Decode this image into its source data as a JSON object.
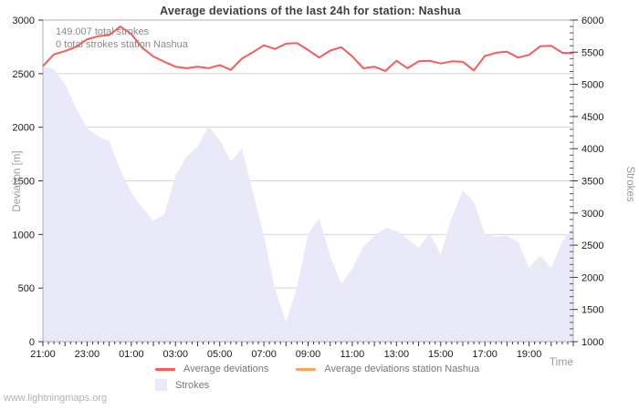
{
  "page": {
    "title": "Average deviations of the last 24h for station: Nashua",
    "watermark": "www.lightningmaps.org"
  },
  "annotations": {
    "total_strokes": "149.007 total strokes",
    "station_strokes": "0 total strokes station Nashua"
  },
  "axes": {
    "left_label": "Deviation [m]",
    "right_label": "Strokes",
    "x_label": "Time"
  },
  "legend": [
    {
      "label": "Average deviations",
      "type": "line",
      "color": "#f45d5d"
    },
    {
      "label": "Average deviations station Nashua",
      "type": "line",
      "color": "#f9a35f"
    },
    {
      "label": "Strokes",
      "type": "area",
      "color": "#e9e9fa"
    }
  ],
  "colors": {
    "deviation_line": "#f45d5d",
    "station_line": "#f9a35f",
    "strokes_fill": "#e9e9fa",
    "grid": "#d4d4d4",
    "frame": "#b0b0b0",
    "tick_text": "#1a1a1a",
    "muted_text": "#9a9a9a"
  },
  "chart_data": {
    "type": "line",
    "title": "Average deviations of the last 24h for station: Nashua",
    "x_start": "21:00",
    "x_step_minutes": 30,
    "x_total_hours": 24,
    "xtick_labels": [
      "21:00",
      "23:00",
      "01:00",
      "03:00",
      "05:00",
      "07:00",
      "09:00",
      "11:00",
      "13:00",
      "15:00",
      "17:00",
      "19:00"
    ],
    "xtick_label_every_hours": 2,
    "ylabel_left": "Deviation [m]",
    "ylabel_right": "Strokes",
    "ylim_left": [
      0,
      3000
    ],
    "ytick_step_left": 500,
    "ylim_right": [
      1000,
      6000
    ],
    "ytick_step_right": 500,
    "grid": "horizontal-only",
    "legend_position": "bottom-center",
    "series": [
      {
        "name": "Average deviations",
        "axis": "left",
        "draw": "line",
        "color": "#f45d5d",
        "values": [
          2570,
          2680,
          2710,
          2750,
          2820,
          2850,
          2860,
          2940,
          2870,
          2740,
          2660,
          2610,
          2565,
          2550,
          2565,
          2550,
          2580,
          2535,
          2640,
          2700,
          2765,
          2730,
          2780,
          2785,
          2720,
          2650,
          2715,
          2748,
          2660,
          2550,
          2565,
          2525,
          2620,
          2550,
          2615,
          2620,
          2595,
          2615,
          2610,
          2530,
          2665,
          2695,
          2705,
          2650,
          2675,
          2755,
          2760,
          2695,
          2690
        ]
      },
      {
        "name": "Average deviations station Nashua",
        "axis": "left",
        "draw": "line",
        "color": "#f9a35f",
        "values": []
      },
      {
        "name": "Strokes",
        "axis": "right",
        "draw": "area",
        "color": "#e9e9fa",
        "values": [
          5270,
          5240,
          5000,
          4630,
          4320,
          4190,
          4120,
          3670,
          3320,
          3080,
          2880,
          2980,
          3580,
          3880,
          4030,
          4350,
          4130,
          3800,
          4000,
          3330,
          2650,
          1820,
          1300,
          1850,
          2670,
          2920,
          2330,
          1900,
          2130,
          2480,
          2640,
          2770,
          2720,
          2600,
          2460,
          2680,
          2360,
          2930,
          3350,
          3170,
          2680,
          2630,
          2650,
          2550,
          2150,
          2340,
          2150,
          2550,
          2800
        ]
      }
    ]
  }
}
